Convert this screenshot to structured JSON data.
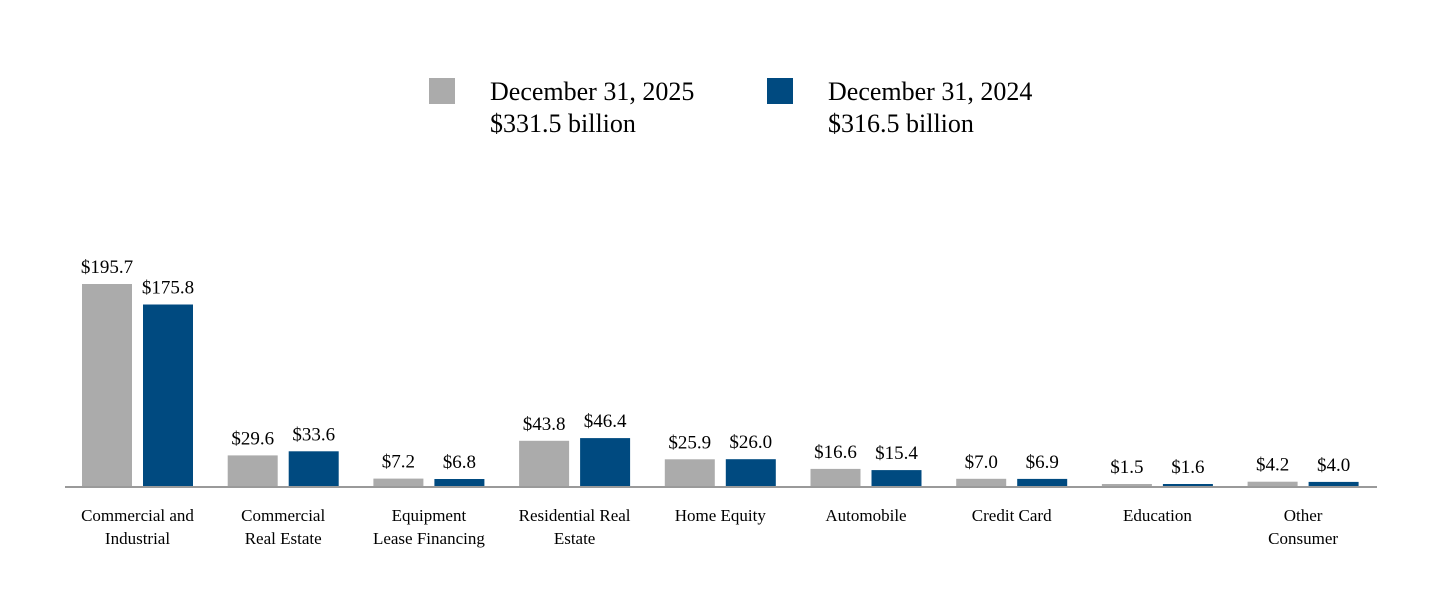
{
  "chart_data": {
    "type": "bar",
    "title": "",
    "xlabel": "",
    "ylabel": "",
    "grid": false,
    "legend_position": "top-center",
    "categories": [
      [
        "Commercial and",
        "Industrial"
      ],
      [
        "Commercial",
        "Real Estate"
      ],
      [
        "Equipment",
        "Lease Financing"
      ],
      [
        "Residential Real",
        "Estate"
      ],
      [
        "Home Equity"
      ],
      [
        "Automobile"
      ],
      [
        "Credit Card"
      ],
      [
        "Education"
      ],
      [
        "Other",
        "Consumer"
      ]
    ],
    "series": [
      {
        "name": "December 31, 2025",
        "total": "$331.5 billion",
        "color": "#ababab",
        "values": [
          195.7,
          29.6,
          7.2,
          43.8,
          25.9,
          16.6,
          7.0,
          1.5,
          4.2
        ],
        "labels": [
          "$195.7",
          "$29.6",
          "$7.2",
          "$43.8",
          "$25.9",
          "$16.6",
          "$7.0",
          "$1.5",
          "$4.2"
        ]
      },
      {
        "name": "December 31, 2024",
        "total": "$316.5 billion",
        "color": "#004a80",
        "values": [
          175.8,
          33.6,
          6.8,
          46.4,
          26.0,
          15.4,
          6.9,
          1.6,
          4.0
        ],
        "labels": [
          "$175.8",
          "$33.6",
          "$6.8",
          "$46.4",
          "$26.0",
          "$15.4",
          "$6.9",
          "$1.6",
          "$4.0"
        ]
      }
    ],
    "ylim": [
      0,
      195.7
    ]
  }
}
